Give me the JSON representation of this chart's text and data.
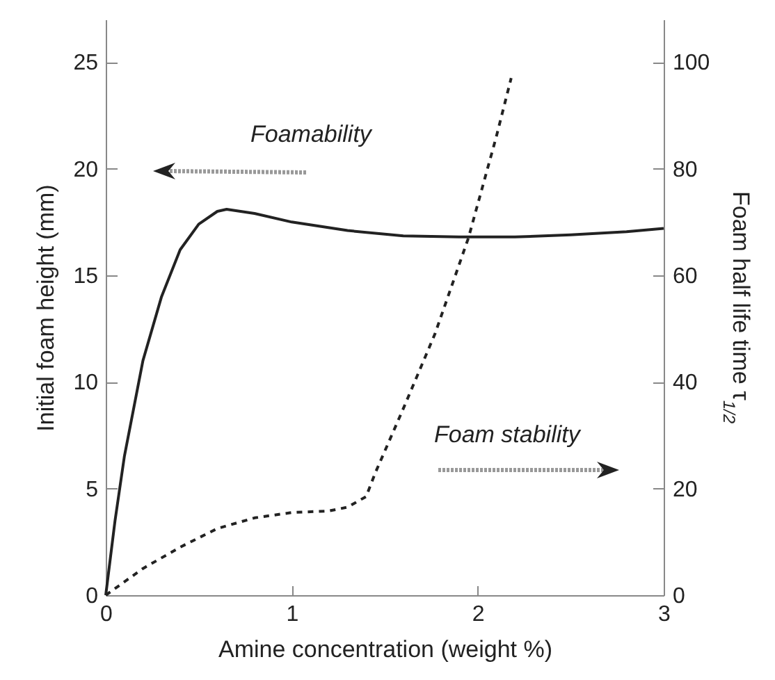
{
  "chart_data": {
    "type": "line",
    "xlabel": "Amine concentration (weight %)",
    "ylabel": "Initial foam height (mm)",
    "y2label": "Foam half life time τ$_{1/2}$",
    "xlim": [
      0,
      3
    ],
    "xticks": [
      0,
      1,
      2,
      3
    ],
    "ylim": [
      0,
      27
    ],
    "yticks": [
      0,
      5,
      10,
      15,
      20,
      25
    ],
    "y2lim": [
      0,
      108
    ],
    "y2ticks": [
      0,
      20,
      40,
      60,
      80,
      100
    ],
    "grid": false,
    "marker": "none",
    "annotations": [
      "Foamability",
      "Foam stability"
    ],
    "series": [
      {
        "color": "#222222",
        "line_style": "solid",
        "x": [
          0,
          0.05,
          0.1,
          0.2,
          0.3,
          0.4,
          0.5,
          0.6,
          0.65,
          0.8,
          1.0,
          1.3,
          1.6,
          1.9,
          2.2,
          2.5,
          2.8,
          3.0
        ],
        "values": [
          0,
          3.5,
          6.5,
          11,
          14,
          16.2,
          17.4,
          18.0,
          18.1,
          17.9,
          17.5,
          17.1,
          16.85,
          16.8,
          16.8,
          16.9,
          17.05,
          17.2
        ]
      },
      {
        "color": "#222222",
        "line_style": "dashed",
        "axis": "y2",
        "x": [
          0,
          0.2,
          0.4,
          0.6,
          0.8,
          1.0,
          1.2,
          1.3,
          1.4,
          1.45,
          1.6,
          1.77,
          1.95,
          2.1,
          2.18
        ],
        "values": [
          0,
          5,
          9,
          12.5,
          14.5,
          15.5,
          15.8,
          16.5,
          18.5,
          23,
          35,
          49,
          67,
          86,
          97
        ]
      }
    ]
  }
}
